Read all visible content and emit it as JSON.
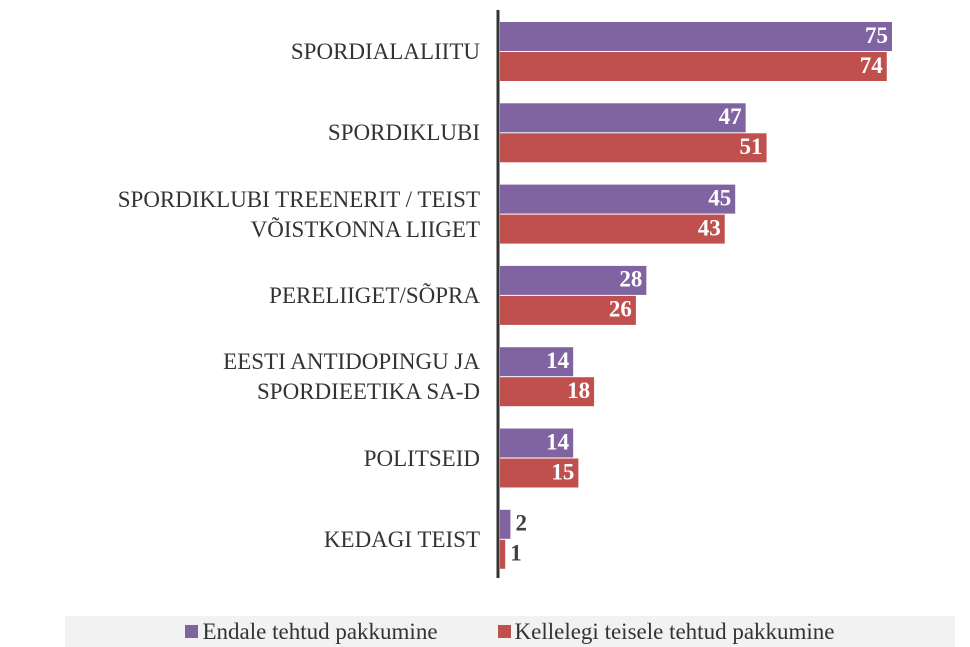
{
  "chart_data": {
    "type": "bar",
    "orientation": "horizontal",
    "categories": [
      "SPORDIALALIITU",
      "SPORDIKLUBI",
      "SPORDIKLUBI TREENERIT / TEIST\nVÕISTKONNA LIIGET",
      "PERELIIGET/SÕPRA",
      "EESTI ANTIDOPINGU JA\nSPORDIEETIKA SA-D",
      "POLITSEID",
      "KEDAGI TEIST"
    ],
    "series": [
      {
        "name": "Endale tehtud pakkumine",
        "color": "#8064a2",
        "values": [
          75,
          47,
          45,
          28,
          14,
          14,
          2
        ]
      },
      {
        "name": "Kellelegi teisele tehtud pakkumine",
        "color": "#c0504d",
        "values": [
          74,
          51,
          43,
          26,
          18,
          15,
          1
        ]
      }
    ],
    "xlim": [
      0,
      75
    ],
    "legend": "bottom"
  }
}
